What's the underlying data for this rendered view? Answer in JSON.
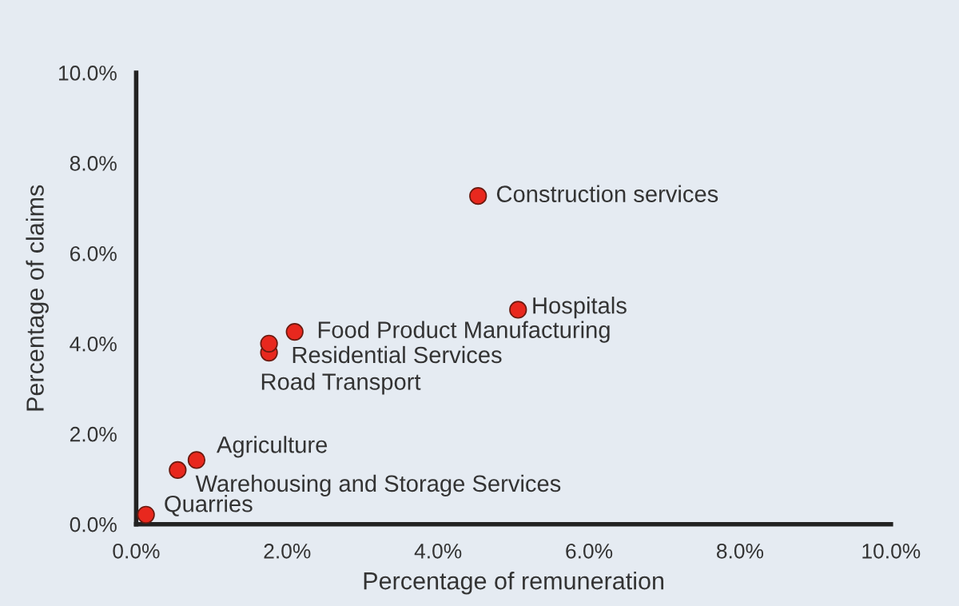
{
  "chart_data": {
    "type": "scatter",
    "xlabel": "Percentage of remuneration",
    "ylabel": "Percentage of claims",
    "x": [
      0.13,
      0.55,
      0.8,
      1.76,
      1.76,
      2.1,
      5.06,
      4.53
    ],
    "values": [
      0.21,
      1.2,
      1.42,
      3.8,
      4.0,
      4.26,
      4.75,
      7.27
    ],
    "color": "#e8281e",
    "marker": "circle",
    "grid": false,
    "legend": false,
    "xlim": [
      0,
      10
    ],
    "ylim": [
      0,
      10
    ],
    "xticks": [
      {
        "value": 0,
        "label": "0.0%"
      },
      {
        "value": 2,
        "label": "2.0%"
      },
      {
        "value": 4,
        "label": "4.0%"
      },
      {
        "value": 6,
        "label": "6.0%"
      },
      {
        "value": 8,
        "label": "8.0%"
      },
      {
        "value": 10,
        "label": "10.0%"
      }
    ],
    "yticks": [
      {
        "value": 0,
        "label": "0.0%"
      },
      {
        "value": 2,
        "label": "2.0%"
      },
      {
        "value": 4,
        "label": "4.0%"
      },
      {
        "value": 6,
        "label": "6.0%"
      },
      {
        "value": 8,
        "label": "8.0%"
      },
      {
        "value": 10,
        "label": "10.0%"
      }
    ],
    "annotations": [
      {
        "text": "Quarries",
        "x": 0.13,
        "y": 0.21
      },
      {
        "text": "Warehousing and Storage Services",
        "x": 0.55,
        "y": 1.2
      },
      {
        "text": "Agriculture",
        "x": 0.8,
        "y": 1.42
      },
      {
        "text": "Road Transport",
        "x": 1.76,
        "y": 3.8
      },
      {
        "text": "Residential Services",
        "x": 1.76,
        "y": 4.0
      },
      {
        "text": "Food Product Manufacturing",
        "x": 2.1,
        "y": 4.26
      },
      {
        "text": "Hospitals",
        "x": 5.06,
        "y": 4.75
      },
      {
        "text": "Construction services",
        "x": 4.53,
        "y": 7.27
      }
    ]
  }
}
